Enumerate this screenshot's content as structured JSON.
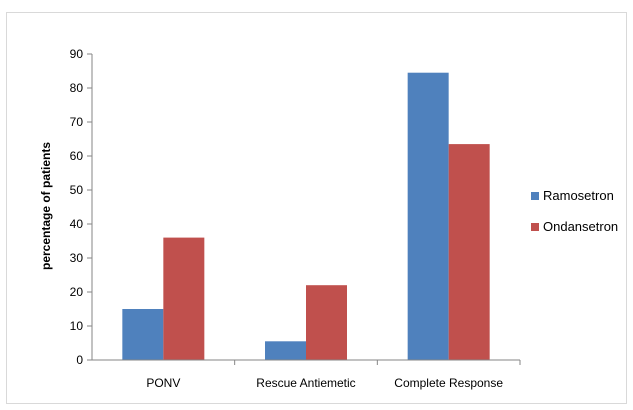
{
  "chart_data": {
    "type": "bar",
    "title": "",
    "xlabel": "",
    "ylabel": "percentage of patients",
    "categories": [
      "PONV",
      "Rescue Antiemetic",
      "Complete Response"
    ],
    "series": [
      {
        "name": "Ramosetron",
        "color": "#4f81bd",
        "values": [
          15,
          5.5,
          84.5
        ]
      },
      {
        "name": "Ondansetron",
        "color": "#c0504d",
        "values": [
          36,
          22,
          63.5
        ]
      }
    ],
    "ylim": [
      0,
      90
    ],
    "yticks": [
      0,
      10,
      20,
      30,
      40,
      50,
      60,
      70,
      80,
      90
    ],
    "grid": false,
    "legend_position": "right"
  }
}
